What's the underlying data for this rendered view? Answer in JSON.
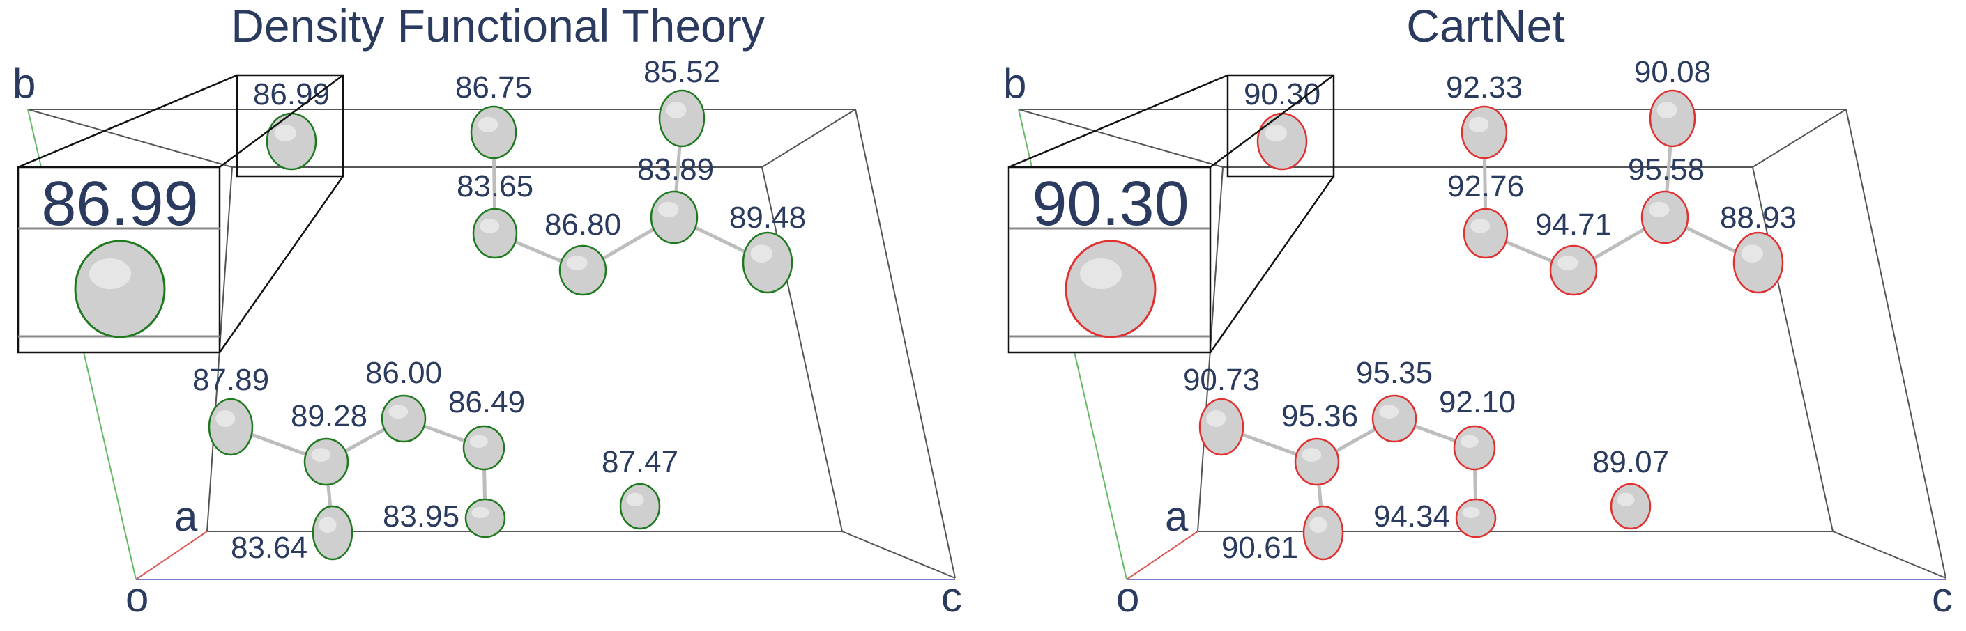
{
  "colors": {
    "text": "#2a3b5f",
    "cell_edge": "#555555",
    "axis_a": "#e05555",
    "axis_b": "#66bb66",
    "axis_c": "#7777cc",
    "atom_fill": "#cfcfcf",
    "bond": "#bdbdbd",
    "dft_outline": "#1f7a1f",
    "cartnet_outline": "#e03030"
  },
  "panels": [
    {
      "title": "Density Functional Theory",
      "axis_labels": {
        "b": "b",
        "a": "a",
        "o": "o",
        "c": "c"
      },
      "zoom_value": "86.99",
      "atoms": [
        {
          "label": "86.99"
        },
        {
          "label": "86.75"
        },
        {
          "label": "85.52"
        },
        {
          "label": "83.65"
        },
        {
          "label": "83.89"
        },
        {
          "label": "86.80"
        },
        {
          "label": "89.48"
        },
        {
          "label": "87.89"
        },
        {
          "label": "86.00"
        },
        {
          "label": "89.28"
        },
        {
          "label": "86.49"
        },
        {
          "label": "87.47"
        },
        {
          "label": "83.95"
        },
        {
          "label": "83.64"
        }
      ]
    },
    {
      "title": "CartNet",
      "axis_labels": {
        "b": "b",
        "a": "a",
        "o": "o",
        "c": "c"
      },
      "zoom_value": "90.30",
      "atoms": [
        {
          "label": "90.30"
        },
        {
          "label": "92.33"
        },
        {
          "label": "90.08"
        },
        {
          "label": "92.76"
        },
        {
          "label": "95.58"
        },
        {
          "label": "94.71"
        },
        {
          "label": "88.93"
        },
        {
          "label": "90.73"
        },
        {
          "label": "95.35"
        },
        {
          "label": "95.36"
        },
        {
          "label": "92.10"
        },
        {
          "label": "89.07"
        },
        {
          "label": "94.34"
        },
        {
          "label": "90.61"
        }
      ]
    }
  ]
}
